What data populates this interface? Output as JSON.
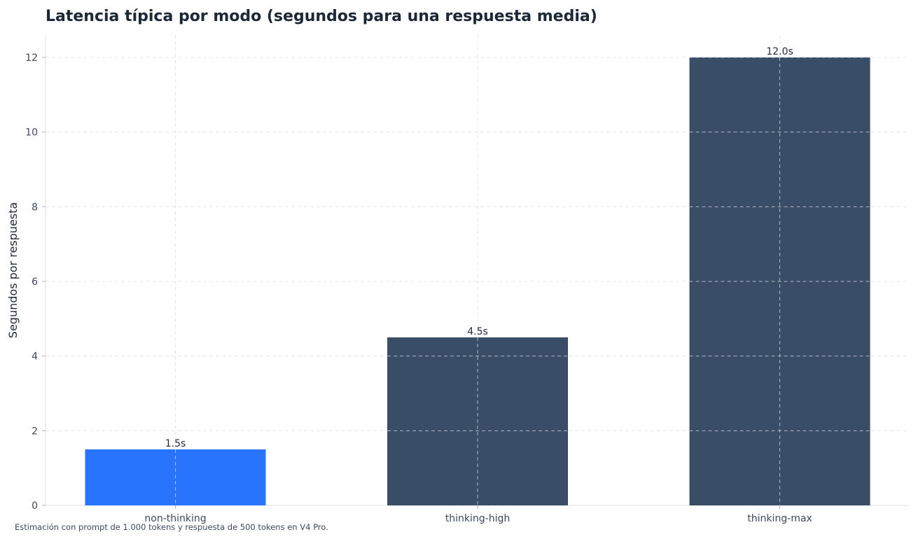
{
  "chart_data": {
    "type": "bar",
    "title": "Latencia típica por modo (segundos para una respuesta media)",
    "xlabel": "",
    "ylabel": "Segundos por respuesta",
    "categories": [
      "non-thinking",
      "thinking-high",
      "thinking-max"
    ],
    "values": [
      1.5,
      4.5,
      12.0
    ],
    "data_labels": [
      "1.5s",
      "4.5s",
      "12.0s"
    ],
    "bar_colors": [
      "#2874fc",
      "#3a4d66",
      "#3a4d66"
    ],
    "ylim": [
      0,
      12.6
    ],
    "yticks": [
      0,
      2,
      4,
      6,
      8,
      10,
      12
    ],
    "grid": true,
    "footnote": "Estimación con prompt de 1.000 tokens y respuesta de 500 tokens en V4 Pro."
  }
}
